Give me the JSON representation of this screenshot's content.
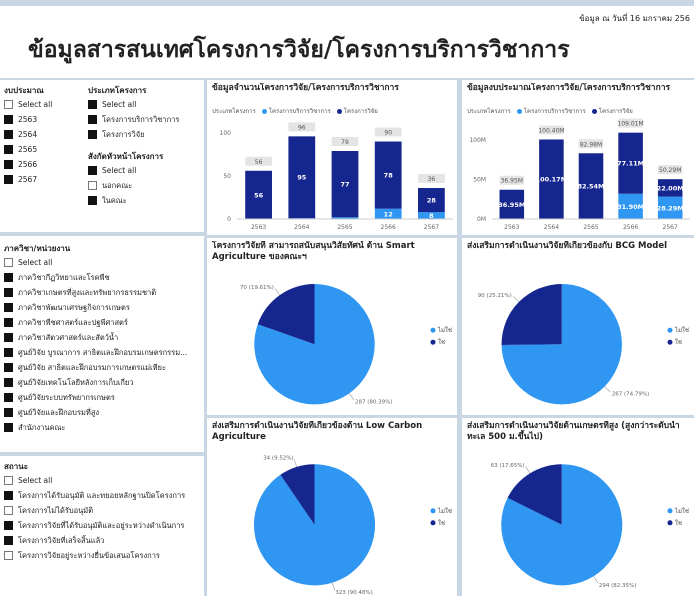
{
  "header": {
    "date": "ข้อมูล ณ วันที่ 16 มกราคม 256",
    "title": "ข้อมูลสารสนเทศโครงการวิจัย/โครงการบริการวิชาการ"
  },
  "filters": [
    {
      "title": "งบประมาณ",
      "items": [
        {
          "label": "Select all",
          "checked": false
        },
        {
          "label": "2563",
          "checked": true
        },
        {
          "label": "2564",
          "checked": true
        },
        {
          "label": "2565",
          "checked": true
        },
        {
          "label": "2566",
          "checked": true
        },
        {
          "label": "2567",
          "checked": true
        }
      ]
    },
    {
      "title": "ประเภทโครงการ",
      "items": [
        {
          "label": "Select all",
          "checked": true
        },
        {
          "label": "โครงการบริการวิชาการ",
          "checked": true
        },
        {
          "label": "โครงการวิจัย",
          "checked": true
        }
      ]
    },
    {
      "title": "สังกัดหัวหน้าโครงการ",
      "items": [
        {
          "label": "Select all",
          "checked": true
        },
        {
          "label": "นอกคณะ",
          "checked": false
        },
        {
          "label": "ในคณะ",
          "checked": true
        }
      ]
    },
    {
      "title": "ภาควิชา/หน่วยงาน",
      "items": [
        {
          "label": "Select all",
          "checked": false
        },
        {
          "label": "ภาควิชากีฏวิทยาและโรคพืช",
          "checked": true
        },
        {
          "label": "ภาควิชาเกษตรที่สูงและทรัพยากรธรรมชาติ",
          "checked": true
        },
        {
          "label": "ภาควิชาพัฒนาเศรษฐกิจการเกษตร",
          "checked": true
        },
        {
          "label": "ภาควิชาพืชศาสตร์และปฐพีศาสตร์",
          "checked": true
        },
        {
          "label": "ภาควิชาสัตวศาสตร์และสัตว์น้ำ",
          "checked": true
        },
        {
          "label": "ศูนย์วิจัย บูรณาการ สาธิตและฝึกอบรมเกษตรกรรม...",
          "checked": true
        },
        {
          "label": "ศูนย์วิจัย สาธิตและฝึกอบรมการเกษตรแม่เหียะ",
          "checked": true
        },
        {
          "label": "ศูนย์วิจัยเทคโนโลยีหลังการเก็บเกี่ยว",
          "checked": true
        },
        {
          "label": "ศูนย์วิจัยระบบทรัพยากรเกษตร",
          "checked": true
        },
        {
          "label": "ศูนย์วิจัยและฝึกอบรมที่สูง",
          "checked": true
        },
        {
          "label": "สำนักงานคณะ",
          "checked": true
        }
      ]
    },
    {
      "title": "สถานะ",
      "items": [
        {
          "label": "Select all",
          "checked": false
        },
        {
          "label": "โครงการได้รับอนุมัติ และทยอยหลักฐานปิดโครงการ",
          "checked": true
        },
        {
          "label": "โครงการไม่ได้รับอนุมัติ",
          "checked": false
        },
        {
          "label": "โครงการวิจัยที่ได้รับอนุมัติและอยู่ระหว่างดำเนินการ",
          "checked": true
        },
        {
          "label": "โครงการวิจัยที่เสร็จสิ้นแล้ว",
          "checked": true
        },
        {
          "label": "โครงการวิจัยอยู่ระหว่างยื่นข้อเสนอโครงการ",
          "checked": false
        }
      ]
    }
  ],
  "chart_data": [
    {
      "type": "bar",
      "title": "ข้อมูลจำนวนโครงการวิจัย/โครงการบริการวิชาการ",
      "legend_title": "ประเภทโครงการ",
      "categories": [
        "2563",
        "2564",
        "2565",
        "2566",
        "2567"
      ],
      "series": [
        {
          "name": "โครงการบริการวิชาการ",
          "color": "#2f96f2",
          "values": [
            0,
            1,
            2,
            12,
            8
          ],
          "value_labels": [
            null,
            null,
            null,
            "12",
            "8"
          ]
        },
        {
          "name": "โครงการวิจัย",
          "color": "#16268f",
          "values": [
            56,
            95,
            77,
            78,
            28
          ]
        }
      ],
      "totals": [
        56,
        96,
        79,
        90,
        36
      ],
      "ylim": [
        0,
        115
      ],
      "yticks": [
        0,
        50,
        100
      ]
    },
    {
      "type": "bar",
      "title": "ข้อมูลงบประมาณโครงการวิจัย/โครงการบริการวิชาการ",
      "legend_title": "ประเภทโครงการ",
      "categories": [
        "2563",
        "2564",
        "2565",
        "2566",
        "2567"
      ],
      "series": [
        {
          "name": "โครงการบริการวิชาการ",
          "color": "#2f96f2",
          "values": [
            0,
            0.23,
            0.44,
            31.9,
            28.29
          ],
          "value_labels": [
            null,
            null,
            null,
            "31.90M",
            "28.29M"
          ]
        },
        {
          "name": "โครงการวิจัย",
          "color": "#16268f",
          "values": [
            36.95,
            100.17,
            82.54,
            77.11,
            22.0
          ],
          "value_labels": [
            "36.95M",
            "100.17M",
            "82.54M",
            "77.11M",
            "22.00M"
          ]
        }
      ],
      "totals": [
        36.95,
        100.4,
        82.98,
        109.01,
        50.29
      ],
      "total_labels": [
        "36.95M",
        "100.40M",
        "82.98M",
        "109.01M",
        "50.29M"
      ],
      "ylim": [
        0,
        125
      ],
      "yticks": [
        {
          "value": 0,
          "label": "0M"
        },
        {
          "value": 50,
          "label": "50M"
        },
        {
          "value": 100,
          "label": "100M"
        }
      ]
    },
    {
      "type": "pie",
      "title": "โครงการวิจัยที่ สามารถสนับสนุนวิสัยทัศน์ ด้าน Smart Agriculture ของคณะฯ",
      "categories": [
        "ไม่ใช่",
        "ใช่"
      ],
      "values": [
        287,
        70
      ],
      "value_labels": [
        "287 (80.39%)",
        "70 (19.61%)"
      ],
      "colors": [
        "#2f96f2",
        "#16268f"
      ]
    },
    {
      "type": "pie",
      "title": "ส่งเสริมการดำเนินงานวิจัยที่เกี่ยวข้องกับ BCG Model",
      "categories": [
        "ไม่ใช่",
        "ใช่"
      ],
      "values": [
        267,
        90
      ],
      "value_labels": [
        "267 (74.79%)",
        "90 (25.21%)"
      ],
      "colors": [
        "#2f96f2",
        "#16268f"
      ]
    },
    {
      "type": "pie",
      "title": "ส่งเสริมการดำเนินงานวิจัยที่เกี่ยวข้องด้าน Low Carbon Agriculture",
      "categories": [
        "ไม่ใช่",
        "ใช่"
      ],
      "values": [
        323,
        34
      ],
      "value_labels": [
        "323 (90.48%)",
        "34 (9.52%)"
      ],
      "colors": [
        "#2f96f2",
        "#16268f"
      ]
    },
    {
      "type": "pie",
      "title": "ส่งเสริมการดำเนินงานวิจัยด้านเกษตรที่สูง (สูงกว่าระดับน้ำทะเล 500 ม.ขึ้นไป)",
      "categories": [
        "ไม่ใช่",
        "ใช่"
      ],
      "values": [
        294,
        63
      ],
      "value_labels": [
        "294 (82.35%)",
        "63 (17.65%)"
      ],
      "colors": [
        "#2f96f2",
        "#16268f"
      ]
    }
  ]
}
